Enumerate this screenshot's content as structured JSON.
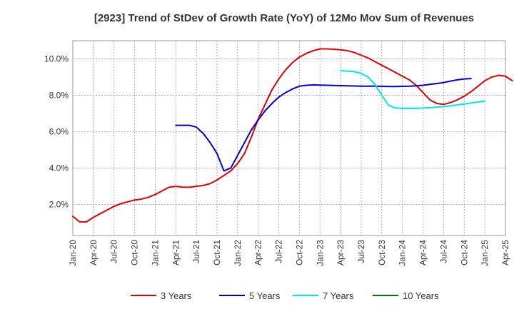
{
  "chart_data": {
    "type": "line",
    "title": "[2923]  Trend of StDev of Growth Rate (YoY) of 12Mo Mov Sum of Revenues",
    "xlabel": "",
    "ylabel": "",
    "ylim": [
      0.3,
      11.0
    ],
    "y_ticks": [
      {
        "value": 2.0,
        "label": "2.0%"
      },
      {
        "value": 4.0,
        "label": "4.0%"
      },
      {
        "value": 6.0,
        "label": "6.0%"
      },
      {
        "value": 8.0,
        "label": "8.0%"
      },
      {
        "value": 10.0,
        "label": "10.0%"
      }
    ],
    "x_ticks": [
      "Jan-20",
      "Apr-20",
      "Jul-20",
      "Oct-20",
      "Jan-21",
      "Apr-21",
      "Jul-21",
      "Oct-21",
      "Jan-22",
      "Apr-22",
      "Jul-22",
      "Oct-22",
      "Jan-23",
      "Apr-23",
      "Jul-23",
      "Oct-23",
      "Jan-24",
      "Apr-24",
      "Jul-24",
      "Oct-24",
      "Jan-25",
      "Apr-25"
    ],
    "grid": true,
    "legend_position": "bottom",
    "series": [
      {
        "name": "3 Years",
        "color": "#dd0000",
        "start_month": 0,
        "values": [
          1.35,
          1.05,
          1.05,
          1.3,
          1.5,
          1.7,
          1.9,
          2.05,
          2.15,
          2.25,
          2.3,
          2.4,
          2.55,
          2.75,
          2.95,
          3.0,
          2.95,
          2.95,
          3.0,
          3.05,
          3.15,
          3.35,
          3.6,
          3.85,
          4.25,
          4.8,
          5.7,
          6.7,
          7.5,
          8.3,
          8.9,
          9.4,
          9.8,
          10.1,
          10.3,
          10.45,
          10.55,
          10.55,
          10.53,
          10.5,
          10.45,
          10.35,
          10.2,
          10.05,
          9.85,
          9.65,
          9.45,
          9.25,
          9.05,
          8.85,
          8.55,
          8.15,
          7.75,
          7.55,
          7.5,
          7.6,
          7.75,
          7.95,
          8.2,
          8.5,
          8.8,
          9.0,
          9.1,
          9.05,
          8.8
        ]
      },
      {
        "name": "5 Years",
        "color": "#0000cc",
        "start_month": 15,
        "values": [
          6.35,
          6.35,
          6.35,
          6.25,
          5.9,
          5.4,
          4.8,
          3.85,
          4.0,
          4.7,
          5.4,
          6.1,
          6.65,
          7.15,
          7.55,
          7.9,
          8.15,
          8.35,
          8.5,
          8.55,
          8.57,
          8.56,
          8.55,
          8.54,
          8.53,
          8.52,
          8.51,
          8.5,
          8.5,
          8.5,
          8.49,
          8.48,
          8.48,
          8.49,
          8.5,
          8.52,
          8.55,
          8.6,
          8.65,
          8.7,
          8.78,
          8.85,
          8.9,
          8.92
        ]
      },
      {
        "name": "7 Years",
        "color": "#00e5ee",
        "start_month": 39,
        "values": [
          9.35,
          9.33,
          9.3,
          9.2,
          9.0,
          8.6,
          8.0,
          7.45,
          7.3,
          7.28,
          7.28,
          7.28,
          7.3,
          7.32,
          7.35,
          7.38,
          7.42,
          7.47,
          7.52,
          7.58,
          7.63,
          7.68
        ]
      },
      {
        "name": "10 Years",
        "color": "#007700",
        "start_month": 0,
        "values": []
      }
    ]
  }
}
